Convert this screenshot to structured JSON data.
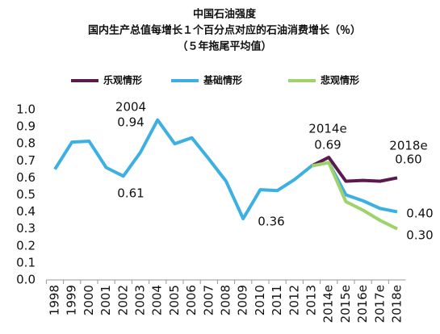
{
  "chart_data": {
    "type": "line",
    "title": "中国石油强度",
    "subtitle": [
      "国内生产总值每增长１个百分点对应的石油消费增长（％）",
      "（５年拖尾平均值）"
    ],
    "categories": [
      "1998",
      "1999",
      "2000",
      "2001",
      "2002",
      "2003",
      "2004",
      "2005",
      "2006",
      "2007",
      "2008",
      "2009",
      "2010",
      "2011",
      "2012",
      "2013",
      "2014e",
      "2015e",
      "2016e",
      "2017e",
      "2018e"
    ],
    "series": [
      {
        "name": "乐观情形",
        "color": "#5b1a4e",
        "values": [
          null,
          null,
          null,
          null,
          null,
          null,
          null,
          null,
          null,
          null,
          null,
          null,
          null,
          null,
          null,
          0.67,
          0.72,
          0.58,
          0.585,
          0.58,
          0.6
        ]
      },
      {
        "name": "基础情形",
        "color": "#3cb0e2",
        "values": [
          0.65,
          0.81,
          0.815,
          0.66,
          0.61,
          0.75,
          0.94,
          0.8,
          0.835,
          0.71,
          0.58,
          0.36,
          0.53,
          0.525,
          0.59,
          0.67,
          0.69,
          0.5,
          0.465,
          0.42,
          0.4
        ]
      },
      {
        "name": "悲观情形",
        "color": "#9ed36c",
        "values": [
          null,
          null,
          null,
          null,
          null,
          null,
          null,
          null,
          null,
          null,
          null,
          null,
          null,
          null,
          null,
          0.67,
          0.69,
          0.46,
          0.41,
          0.35,
          0.3
        ]
      }
    ],
    "ylim": [
      0,
      1
    ],
    "yticks": [
      {
        "value": 0,
        "label": "0.0"
      },
      0.1,
      0.2,
      0.3,
      0.4,
      0.5,
      0.6,
      0.7,
      0.8,
      0.9,
      {
        "value": 1,
        "label": "1.0"
      }
    ],
    "annotations": [
      "2004",
      "0.94",
      "0.61",
      "0.36",
      "2014e",
      "0.69",
      "2018e",
      "0.60",
      "0.40",
      "0.30"
    ]
  }
}
